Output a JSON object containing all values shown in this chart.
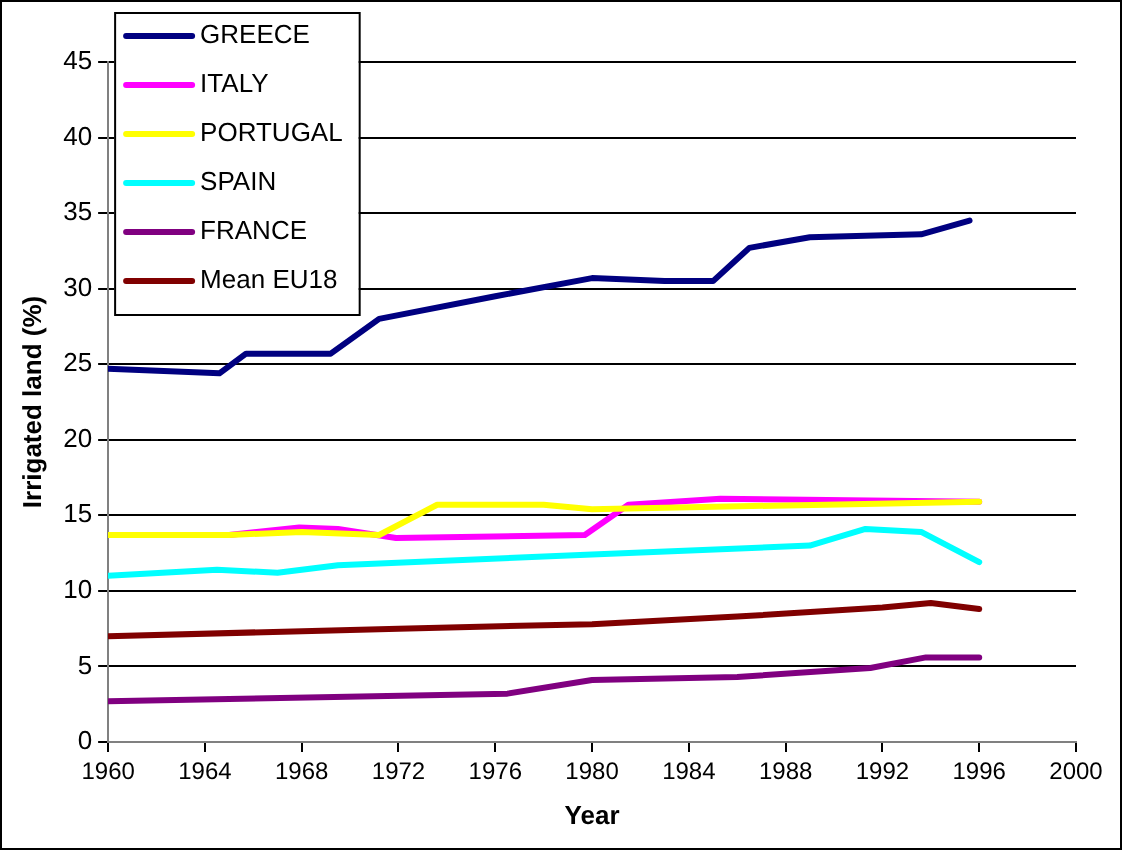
{
  "chart_data": {
    "type": "line",
    "xlabel": "Year",
    "ylabel": "Irrigated land (%)",
    "xlim": [
      1960,
      2000
    ],
    "xticks": [
      1960,
      1964,
      1968,
      1972,
      1976,
      1980,
      1984,
      1988,
      1992,
      1996,
      2000
    ],
    "ylim": [
      0,
      45
    ],
    "yticks": [
      0,
      5,
      10,
      15,
      20,
      25,
      30,
      35,
      40,
      45
    ],
    "grid": "y",
    "legend": "top left",
    "marker": "none",
    "line_style": "solid",
    "series": [
      {
        "name": "GREECE",
        "color": "#000080",
        "x": [
          1960,
          1964.6,
          1965.7,
          1969.2,
          1971.2,
          1976,
          1980,
          1983,
          1985,
          1986.5,
          1989,
          1993.6,
          1995.6
        ],
        "values": [
          24.7,
          24.4,
          25.7,
          25.7,
          28,
          29.5,
          30.7,
          30.5,
          30.5,
          32.7,
          33.4,
          33.6,
          34.5
        ]
      },
      {
        "name": "ITALY",
        "color": "#ff00ff",
        "x": [
          1960,
          1965,
          1967.9,
          1969.5,
          1971.9,
          1979.7,
          1981.5,
          1985.3,
          1996
        ],
        "values": [
          13.7,
          13.7,
          14.2,
          14.1,
          13.5,
          13.7,
          15.7,
          16.1,
          15.9
        ]
      },
      {
        "name": "PORTUGAL",
        "color": "#ffff00",
        "x": [
          1960,
          1965,
          1968,
          1971.2,
          1973.6,
          1978,
          1980,
          1983,
          1996
        ],
        "values": [
          13.7,
          13.7,
          13.9,
          13.7,
          15.7,
          15.7,
          15.4,
          15.5,
          15.9
        ]
      },
      {
        "name": "SPAIN",
        "color": "#00ffff",
        "x": [
          1960,
          1964.5,
          1967,
          1969.5,
          1980,
          1989,
          1991.3,
          1993.6,
          1996
        ],
        "values": [
          11.0,
          11.4,
          11.2,
          11.7,
          12.4,
          13.0,
          14.1,
          13.9,
          11.9
        ]
      },
      {
        "name": "FRANCE",
        "color": "#800080",
        "x": [
          1960,
          1976.5,
          1980,
          1986,
          1991.5,
          1993.8,
          1996
        ],
        "values": [
          2.7,
          3.2,
          4.1,
          4.3,
          4.9,
          5.6,
          5.6
        ]
      },
      {
        "name": "Mean EU18",
        "color": "#800000",
        "x": [
          1960,
          1972,
          1980,
          1986,
          1992,
          1994,
          1996
        ],
        "values": [
          7.0,
          7.5,
          7.8,
          8.3,
          8.9,
          9.2,
          8.8
        ]
      }
    ]
  }
}
